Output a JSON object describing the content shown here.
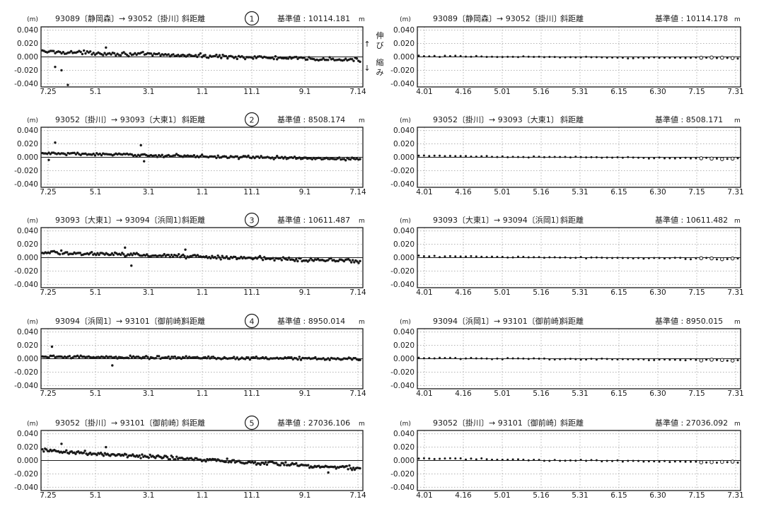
{
  "annotations": {
    "arrow_up": "↑",
    "arrow_down": "↓",
    "extend_label": "伸び",
    "shrink_label": "縮み"
  },
  "chart_data": [
    {
      "type": "scatter",
      "title": "93089〔静岡森〕→ 93052〔掛川〕",
      "measure": "斜距離",
      "number": "1",
      "ref_label": "基準値",
      "ref_value": "10114.181",
      "ref_unit": "m",
      "ylabel": "(m)",
      "ylim": [
        -0.045,
        0.045
      ],
      "yticks": [
        "0.040",
        "0.020",
        "0.000",
        "-0.020",
        "-0.040"
      ],
      "xticklabels": [
        "7.25",
        "5.1",
        "3.1",
        "1.1",
        "11.1",
        "9.1",
        "7.14"
      ],
      "trend": [
        0.008,
        -0.005
      ],
      "noise": 0.004,
      "n": 200,
      "outliers": [
        [
          0.08,
          -0.042
        ],
        [
          0.04,
          -0.015
        ],
        [
          0.06,
          -0.02
        ],
        [
          0.2,
          0.014
        ]
      ],
      "open_tail": 0
    },
    {
      "type": "scatter",
      "title": "93089〔静岡森〕→ 93052〔掛川〕",
      "measure": "斜距離",
      "ref_label": "基準値",
      "ref_value": "10114.178",
      "ref_unit": "m",
      "ylabel": "(m)",
      "ylim": [
        -0.045,
        0.045
      ],
      "yticks": [
        "0.040",
        "0.020",
        "0.000",
        "-0.020",
        "-0.040"
      ],
      "xticklabels": [
        "4.01",
        "4.16",
        "5.01",
        "5.16",
        "5.31",
        "6.15",
        "6.30",
        "7.15",
        "7.31"
      ],
      "trend": [
        0.001,
        -0.002
      ],
      "noise": 0.0015,
      "n": 62,
      "outliers": [],
      "open_tail": 0.12
    },
    {
      "type": "scatter",
      "title": "93052〔掛川〕→ 93093〔大東1〕",
      "measure": "斜距離",
      "number": "2",
      "ref_label": "基準値",
      "ref_value": "8508.174",
      "ref_unit": "m",
      "ylabel": "(m)",
      "ylim": [
        -0.045,
        0.045
      ],
      "yticks": [
        "0.040",
        "0.020",
        "0.000",
        "-0.020",
        "-0.040"
      ],
      "xticklabels": [
        "7.25",
        "5.1",
        "3.1",
        "1.1",
        "11.1",
        "9.1",
        "7.14"
      ],
      "trend": [
        0.006,
        -0.003
      ],
      "noise": 0.003,
      "n": 200,
      "outliers": [
        [
          0.04,
          0.022
        ],
        [
          0.02,
          -0.004
        ],
        [
          0.31,
          0.018
        ],
        [
          0.32,
          -0.006
        ]
      ],
      "open_tail": 0
    },
    {
      "type": "scatter",
      "title": "93052〔掛川〕→ 93093〔大東1〕",
      "measure": "斜距離",
      "ref_label": "基準値",
      "ref_value": "8508.171",
      "ref_unit": "m",
      "ylabel": "(m)",
      "ylim": [
        -0.045,
        0.045
      ],
      "yticks": [
        "0.040",
        "0.020",
        "0.000",
        "-0.020",
        "-0.040"
      ],
      "xticklabels": [
        "4.01",
        "4.16",
        "5.01",
        "5.16",
        "5.31",
        "6.15",
        "6.30",
        "7.15",
        "7.31"
      ],
      "trend": [
        0.002,
        -0.002
      ],
      "noise": 0.0015,
      "n": 62,
      "outliers": [],
      "open_tail": 0.12
    },
    {
      "type": "scatter",
      "title": "93093〔大東1〕→ 93094〔浜岡1〕",
      "measure": "斜距離",
      "number": "3",
      "ref_label": "基準値",
      "ref_value": "10611.487",
      "ref_unit": "m",
      "ylabel": "(m)",
      "ylim": [
        -0.045,
        0.045
      ],
      "yticks": [
        "0.040",
        "0.020",
        "0.000",
        "-0.020",
        "-0.040"
      ],
      "xticklabels": [
        "7.25",
        "5.1",
        "3.1",
        "1.1",
        "11.1",
        "9.1",
        "7.14"
      ],
      "trend": [
        0.008,
        -0.005
      ],
      "noise": 0.004,
      "n": 220,
      "outliers": [
        [
          0.26,
          0.015
        ],
        [
          0.28,
          -0.012
        ],
        [
          0.45,
          0.012
        ]
      ],
      "open_tail": 0
    },
    {
      "type": "scatter",
      "title": "93093〔大東1〕→ 93094〔浜岡1〕",
      "measure": "斜距離",
      "ref_label": "基準値",
      "ref_value": "10611.482",
      "ref_unit": "m",
      "ylabel": "(m)",
      "ylim": [
        -0.045,
        0.045
      ],
      "yticks": [
        "0.040",
        "0.020",
        "0.000",
        "-0.020",
        "-0.040"
      ],
      "xticklabels": [
        "4.01",
        "4.16",
        "5.01",
        "5.16",
        "5.31",
        "6.15",
        "6.30",
        "7.15",
        "7.31"
      ],
      "trend": [
        0.002,
        -0.002
      ],
      "noise": 0.0018,
      "n": 62,
      "outliers": [],
      "open_tail": 0.12
    },
    {
      "type": "scatter",
      "title": "93094〔浜岡1〕→ 93101〔御前崎〕",
      "measure": "斜距離",
      "number": "4",
      "ref_label": "基準値",
      "ref_value": "8950.014",
      "ref_unit": "m",
      "ylabel": "(m)",
      "ylim": [
        -0.045,
        0.045
      ],
      "yticks": [
        "0.040",
        "0.020",
        "0.000",
        "-0.020",
        "-0.040"
      ],
      "xticklabels": [
        "7.25",
        "5.1",
        "3.1",
        "1.1",
        "11.1",
        "9.1",
        "7.14"
      ],
      "trend": [
        0.003,
        0.0
      ],
      "noise": 0.003,
      "n": 200,
      "outliers": [
        [
          0.03,
          0.018
        ],
        [
          0.22,
          -0.01
        ]
      ],
      "open_tail": 0
    },
    {
      "type": "scatter",
      "title": "93094〔浜岡1〕→ 93101〔御前崎〕",
      "measure": "斜距離",
      "ref_label": "基準値",
      "ref_value": "8950.015",
      "ref_unit": "m",
      "ylabel": "(m)",
      "ylim": [
        -0.045,
        0.045
      ],
      "yticks": [
        "0.040",
        "0.020",
        "0.000",
        "-0.020",
        "-0.040"
      ],
      "xticklabels": [
        "4.01",
        "4.16",
        "5.01",
        "5.16",
        "5.31",
        "6.15",
        "6.30",
        "7.15",
        "7.31"
      ],
      "trend": [
        0.001,
        -0.002
      ],
      "noise": 0.0015,
      "n": 62,
      "outliers": [],
      "open_tail": 0.12
    },
    {
      "type": "scatter",
      "title": "93052〔掛川〕→ 93101〔御前崎〕",
      "measure": "斜距離",
      "number": "5",
      "ref_label": "基準値",
      "ref_value": "27036.106",
      "ref_unit": "m",
      "ylabel": "(m)",
      "ylim": [
        -0.045,
        0.045
      ],
      "yticks": [
        "0.040",
        "0.020",
        "0.000",
        "-0.020",
        "-0.040"
      ],
      "xticklabels": [
        "7.25",
        "5.1",
        "3.1",
        "1.1",
        "11.1",
        "9.1",
        "7.14"
      ],
      "trend": [
        0.015,
        -0.012
      ],
      "noise": 0.004,
      "n": 240,
      "outliers": [
        [
          0.06,
          0.025
        ],
        [
          0.2,
          0.02
        ],
        [
          0.85,
          -0.01
        ],
        [
          0.9,
          -0.018
        ]
      ],
      "open_tail": 0
    },
    {
      "type": "scatter",
      "title": "93052〔掛川〕→ 93101〔御前崎〕",
      "measure": "斜距離",
      "ref_label": "基準値",
      "ref_value": "27036.092",
      "ref_unit": "m",
      "ylabel": "(m)",
      "ylim": [
        -0.045,
        0.045
      ],
      "yticks": [
        "0.040",
        "0.020",
        "0.000",
        "-0.020",
        "-0.040"
      ],
      "xticklabels": [
        "4.01",
        "4.16",
        "5.01",
        "5.16",
        "5.31",
        "6.15",
        "6.30",
        "7.15",
        "7.31"
      ],
      "trend": [
        0.003,
        -0.003
      ],
      "noise": 0.002,
      "n": 62,
      "outliers": [],
      "open_tail": 0.12
    }
  ]
}
